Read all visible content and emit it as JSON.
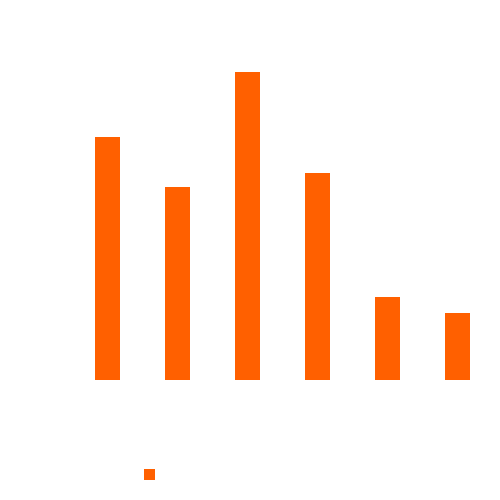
{
  "chart_data": {
    "type": "bar",
    "categories": [
      "",
      "",
      "",
      "",
      "",
      ""
    ],
    "series": [
      {
        "color": "#ff6000",
        "values": [
          243,
          193,
          308,
          207,
          83,
          67
        ]
      }
    ],
    "ylim": [
      0,
      308
    ],
    "grid": false,
    "legend": {
      "placement": "bottom-left",
      "entries": [
        {
          "label": "",
          "color": "#ff6000"
        }
      ]
    }
  }
}
